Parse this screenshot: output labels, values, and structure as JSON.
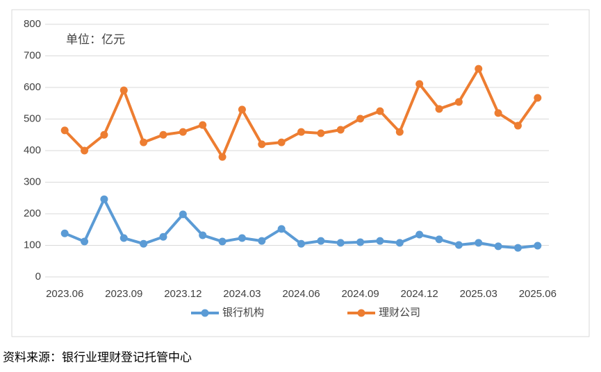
{
  "chart_data": {
    "type": "line",
    "annotation": "单位：亿元",
    "source": "资料来源：银行业理财登记托管中心",
    "categories": [
      "2023.06",
      null,
      null,
      "2023.09",
      null,
      null,
      "2023.12",
      null,
      null,
      "2024.03",
      null,
      null,
      "2024.06",
      null,
      null,
      "2024.09",
      null,
      null,
      "2024.12",
      null,
      null,
      "2025.03",
      null,
      null,
      "2025.06"
    ],
    "series": [
      {
        "name": "银行机构",
        "color": "#5b9bd5",
        "values": [
          138,
          112,
          246,
          123,
          105,
          127,
          198,
          132,
          112,
          123,
          114,
          152,
          105,
          114,
          108,
          110,
          114,
          108,
          134,
          119,
          101,
          108,
          97,
          92,
          99
        ]
      },
      {
        "name": "理财公司",
        "color": "#ed7d31",
        "values": [
          464,
          400,
          450,
          591,
          426,
          450,
          459,
          481,
          380,
          530,
          420,
          426,
          459,
          455,
          466,
          501,
          525,
          459,
          611,
          532,
          554,
          659,
          519,
          479,
          567
        ]
      }
    ],
    "ylim": [
      0,
      800
    ],
    "yticks": [
      0,
      100,
      200,
      300,
      400,
      500,
      600,
      700,
      800
    ],
    "grid": true,
    "legend": "bottom"
  }
}
